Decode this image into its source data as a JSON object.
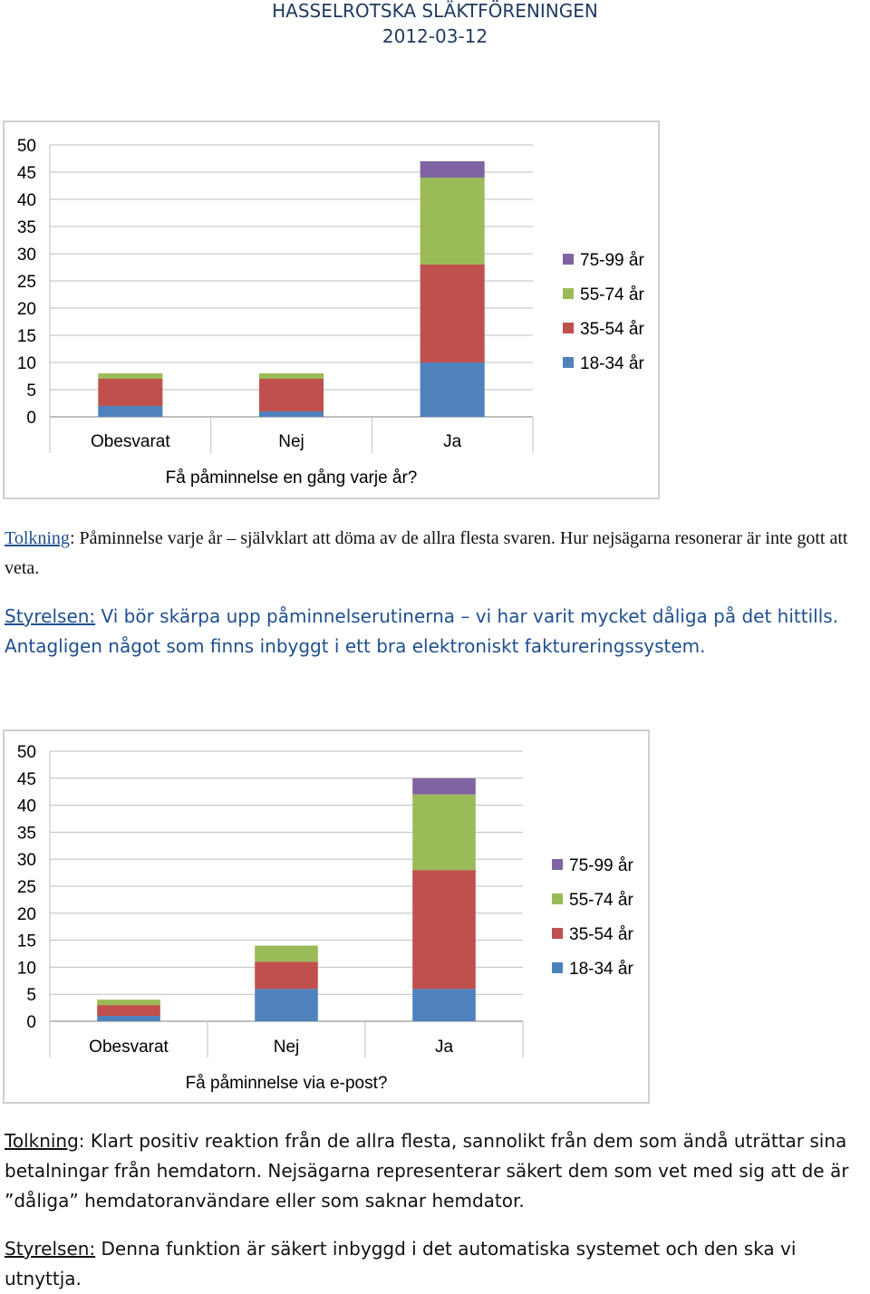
{
  "header": {
    "org": "HASSELROTSKA SLÄKTFÖRENINGEN",
    "date": "2012-03-12"
  },
  "colors": {
    "18-34": "#4f81bd",
    "35-54": "#c0504d",
    "55-74": "#9bbb59",
    "75-99": "#8064a2"
  },
  "chart_data": [
    {
      "type": "bar",
      "stacked": true,
      "title": "",
      "xlabel": "Få påminnelse en gång varje år?",
      "ylabel": "",
      "ylim": [
        0,
        50
      ],
      "yticks": [
        "0",
        "5",
        "10",
        "15",
        "20",
        "25",
        "30",
        "35",
        "40",
        "45",
        "50"
      ],
      "categories": [
        "Obesvarat",
        "Nej",
        "Ja"
      ],
      "series": [
        {
          "name": "18-34 år",
          "values": [
            2,
            1,
            10
          ]
        },
        {
          "name": "35-54 år",
          "values": [
            5,
            6,
            18
          ]
        },
        {
          "name": "55-74 år",
          "values": [
            1,
            1,
            16
          ]
        },
        {
          "name": "75-99 år",
          "values": [
            0,
            0,
            3
          ]
        }
      ],
      "legend": "right"
    },
    {
      "type": "bar",
      "stacked": true,
      "title": "",
      "xlabel": "Få påminnelse via e-post?",
      "ylabel": "",
      "ylim": [
        0,
        50
      ],
      "yticks": [
        "0",
        "5",
        "10",
        "15",
        "20",
        "25",
        "30",
        "35",
        "40",
        "45",
        "50"
      ],
      "categories": [
        "Obesvarat",
        "Nej",
        "Ja"
      ],
      "series": [
        {
          "name": "18-34 år",
          "values": [
            1,
            6,
            6
          ]
        },
        {
          "name": "35-54 år",
          "values": [
            2,
            5,
            22
          ]
        },
        {
          "name": "55-74 år",
          "values": [
            1,
            3,
            14
          ]
        },
        {
          "name": "75-99 år",
          "values": [
            0,
            0,
            3
          ]
        }
      ],
      "legend": "right"
    }
  ],
  "text1": {
    "lead": "Tolkning",
    "body": ": Påminnelse varje år – självklart att döma av de allra flesta svaren. Hur nejsägarna resonerar är inte gott att veta."
  },
  "text2": {
    "lead": "Styrelsen:",
    "body": " Vi bör skärpa upp påminnelserutinerna – vi har varit mycket dåliga på det hittills. Antagligen något som finns inbyggt i ett bra elektroniskt faktureringssystem."
  },
  "text3": {
    "lead": "Tolkning",
    "body": ": Klart positiv reaktion från de allra flesta, sannolikt från dem som ändå uträttar sina betalningar från hemdatorn. Nejsägarna representerar säkert dem som vet med sig att de är ”dåliga” hemdatoranvändare eller som saknar hemdator."
  },
  "text4": {
    "lead": "Styrelsen:",
    "body": " Denna funktion är säkert inbyggd i det automatiska systemet och den ska vi utnyttja."
  }
}
